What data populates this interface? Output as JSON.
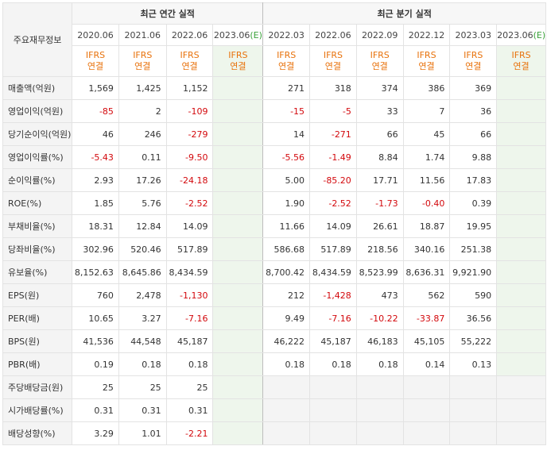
{
  "header": {
    "label_col": "주요재무정보",
    "annual_title": "최근 연간 실적",
    "quarter_title": "최근 분기 실적",
    "annual_periods": [
      "2020.06",
      "2021.06",
      "2022.06",
      "2023.06"
    ],
    "annual_est_mark": "(E)",
    "quarter_periods": [
      "2022.03",
      "2022.06",
      "2022.09",
      "2022.12",
      "2023.03",
      "2023.06"
    ],
    "quarter_est_mark": "(E)",
    "ifrs": "IFRS",
    "consolidated": "연결"
  },
  "rows": [
    {
      "label": "매출액(억원)",
      "annual": [
        "1,569",
        "1,425",
        "1,152",
        ""
      ],
      "quarter": [
        "271",
        "318",
        "374",
        "386",
        "369",
        ""
      ]
    },
    {
      "label": "영업이익(억원)",
      "annual": [
        "-85",
        "2",
        "-109",
        ""
      ],
      "quarter": [
        "-15",
        "-5",
        "33",
        "7",
        "36",
        ""
      ]
    },
    {
      "label": "당기순이익(억원)",
      "annual": [
        "46",
        "246",
        "-279",
        ""
      ],
      "quarter": [
        "14",
        "-271",
        "66",
        "45",
        "66",
        ""
      ]
    },
    {
      "label": "영업이익률(%)",
      "annual": [
        "-5.43",
        "0.11",
        "-9.50",
        ""
      ],
      "quarter": [
        "-5.56",
        "-1.49",
        "8.84",
        "1.74",
        "9.88",
        ""
      ]
    },
    {
      "label": "순이익률(%)",
      "annual": [
        "2.93",
        "17.26",
        "-24.18",
        ""
      ],
      "quarter": [
        "5.00",
        "-85.20",
        "17.71",
        "11.56",
        "17.83",
        ""
      ]
    },
    {
      "label": "ROE(%)",
      "annual": [
        "1.85",
        "5.76",
        "-2.52",
        ""
      ],
      "quarter": [
        "1.90",
        "-2.52",
        "-1.73",
        "-0.40",
        "0.39",
        ""
      ]
    },
    {
      "label": "부채비율(%)",
      "annual": [
        "18.31",
        "12.84",
        "14.09",
        ""
      ],
      "quarter": [
        "11.66",
        "14.09",
        "26.61",
        "18.87",
        "19.95",
        ""
      ]
    },
    {
      "label": "당좌비율(%)",
      "annual": [
        "302.96",
        "520.46",
        "517.89",
        ""
      ],
      "quarter": [
        "586.68",
        "517.89",
        "218.56",
        "340.16",
        "251.38",
        ""
      ]
    },
    {
      "label": "유보율(%)",
      "annual": [
        "8,152.63",
        "8,645.86",
        "8,434.59",
        ""
      ],
      "quarter": [
        "8,700.42",
        "8,434.59",
        "8,523.99",
        "8,636.31",
        "9,921.90",
        ""
      ]
    },
    {
      "label": "EPS(원)",
      "annual": [
        "760",
        "2,478",
        "-1,130",
        ""
      ],
      "quarter": [
        "212",
        "-1,428",
        "473",
        "562",
        "590",
        ""
      ]
    },
    {
      "label": "PER(배)",
      "annual": [
        "10.65",
        "3.27",
        "-7.16",
        ""
      ],
      "quarter": [
        "9.49",
        "-7.16",
        "-10.22",
        "-33.87",
        "36.56",
        ""
      ]
    },
    {
      "label": "BPS(원)",
      "annual": [
        "41,536",
        "44,548",
        "45,187",
        ""
      ],
      "quarter": [
        "46,222",
        "45,187",
        "46,183",
        "45,105",
        "55,222",
        ""
      ]
    },
    {
      "label": "PBR(배)",
      "annual": [
        "0.19",
        "0.18",
        "0.18",
        ""
      ],
      "quarter": [
        "0.18",
        "0.18",
        "0.18",
        "0.14",
        "0.13",
        ""
      ]
    },
    {
      "label": "주당배당금(원)",
      "annual": [
        "25",
        "25",
        "25",
        ""
      ],
      "quarter": null
    },
    {
      "label": "시가배당률(%)",
      "annual": [
        "0.31",
        "0.31",
        "0.31",
        ""
      ],
      "quarter": null
    },
    {
      "label": "배당성향(%)",
      "annual": [
        "3.29",
        "1.01",
        "-2.21",
        ""
      ],
      "quarter": null
    }
  ]
}
